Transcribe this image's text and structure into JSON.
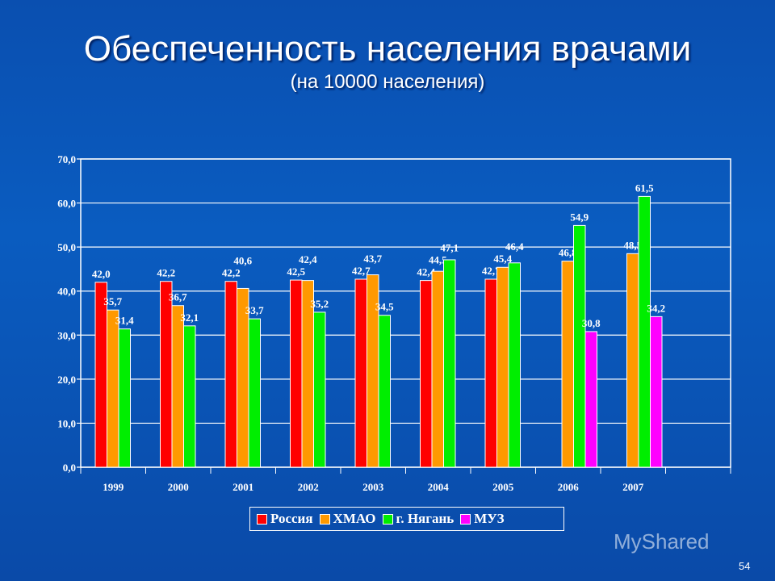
{
  "page_number": "54",
  "watermark": "MyShared",
  "chart_data": {
    "type": "bar",
    "title": "Обеспеченность населения врачами",
    "subtitle": "(на 10000 населения)",
    "categories": [
      "1999",
      "2000",
      "2001",
      "2002",
      "2003",
      "2004",
      "2005",
      "2006",
      "2007"
    ],
    "ylim": [
      0,
      70
    ],
    "yticks": [
      "0,0",
      "10,0",
      "20,0",
      "30,0",
      "40,0",
      "50,0",
      "60,0",
      "70,0"
    ],
    "grid": true,
    "legend_position": "bottom",
    "series": [
      {
        "name": "Россия",
        "color": "#ff0000",
        "values": [
          42.0,
          42.2,
          42.2,
          42.5,
          42.7,
          42.4,
          42.7,
          null,
          null
        ]
      },
      {
        "name": "ХМАО",
        "color": "#ff9900",
        "values": [
          35.7,
          36.7,
          40.6,
          42.4,
          43.7,
          44.5,
          45.4,
          46.8,
          48.5
        ]
      },
      {
        "name": "г. Нягань",
        "color": "#00ee00",
        "values": [
          31.4,
          32.1,
          33.7,
          35.2,
          34.5,
          47.1,
          46.4,
          54.9,
          61.5
        ]
      },
      {
        "name": "МУЗ",
        "color": "#ff00ff",
        "values": [
          null,
          null,
          null,
          null,
          null,
          null,
          null,
          30.8,
          34.2
        ]
      }
    ]
  }
}
